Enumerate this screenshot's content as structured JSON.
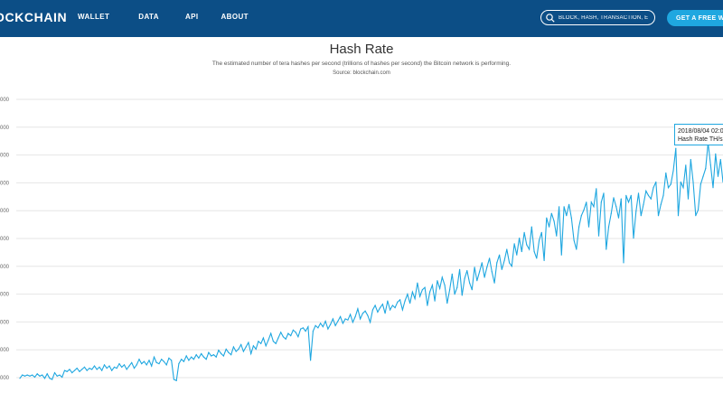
{
  "header": {
    "logo": "OCKCHAIN",
    "nav": [
      "WALLET",
      "DATA",
      "API",
      "ABOUT"
    ],
    "search_placeholder": "BLOCK, HASH, TRANSACTION, ETC...",
    "cta_label": "GET A FREE WALL"
  },
  "page": {
    "title": "Hash Rate",
    "subtitle": "The estimated number of tera hashes per second (trillions of hashes per second) the Bitcoin network is performing.",
    "source": "Source: blockchain.com"
  },
  "tooltip": {
    "date": "2018/08/04 02:0",
    "label": "Hash Rate TH/s:"
  },
  "colors": {
    "header_bg": "#0c4e86",
    "cta_bg": "#1fa7e0",
    "line": "#1fa7e0",
    "grid": "#e6e6e6"
  },
  "chart_data": {
    "type": "line",
    "title": "Hash Rate",
    "ylabel": "",
    "ytick_labels": [
      "000",
      "000",
      "000",
      "000",
      "000",
      "000",
      "000",
      "000",
      "000",
      "000",
      "000"
    ],
    "series": [
      {
        "values": [
          5,
          8,
          7,
          8,
          7,
          8,
          6,
          9,
          7,
          8,
          5,
          9,
          5,
          4,
          10,
          7,
          8,
          6,
          12,
          11,
          13,
          10,
          12,
          14,
          11,
          13,
          15,
          12,
          14,
          13,
          16,
          13,
          15,
          12,
          17,
          14,
          16,
          12,
          15,
          14,
          18,
          15,
          17,
          13,
          16,
          19,
          14,
          17,
          22,
          18,
          20,
          17,
          21,
          16,
          24,
          19,
          18,
          22,
          20,
          17,
          23,
          21,
          4,
          3,
          18,
          22,
          20,
          25,
          21,
          24,
          22,
          26,
          23,
          27,
          24,
          22,
          28,
          25,
          26,
          24,
          30,
          27,
          25,
          31,
          28,
          26,
          33,
          29,
          31,
          35,
          29,
          33,
          37,
          27,
          34,
          31,
          38,
          36,
          41,
          34,
          39,
          45,
          38,
          36,
          41,
          46,
          42,
          40,
          45,
          43,
          48,
          46,
          42,
          49,
          50,
          47,
          51,
          21,
          47,
          52,
          50,
          54,
          51,
          56,
          49,
          53,
          58,
          52,
          56,
          60,
          54,
          58,
          57,
          62,
          55,
          60,
          67,
          58,
          63,
          65,
          61,
          55,
          66,
          70,
          64,
          68,
          71,
          63,
          74,
          66,
          70,
          68,
          73,
          75,
          66,
          74,
          80,
          72,
          82,
          76,
          90,
          78,
          84,
          86,
          70,
          82,
          88,
          74,
          92,
          85,
          95,
          88,
          72,
          84,
          98,
          80,
          86,
          102,
          79,
          94,
          101,
          90,
          84,
          104,
          92,
          100,
          108,
          95,
          104,
          112,
          100,
          90,
          108,
          115,
          102,
          110,
          120,
          108,
          105,
          125,
          115,
          130,
          118,
          135,
          124,
          120,
          140,
          118,
          112,
          128,
          135,
          110,
          148,
          140,
          152,
          145,
          132,
          158,
          115,
          158,
          150,
          160,
          148,
          128,
          120,
          140,
          150,
          155,
          162,
          140,
          162,
          158,
          174,
          132,
          162,
          170,
          120,
          140,
          152,
          166,
          158,
          148,
          165,
          108,
          168,
          162,
          168,
          130,
          154,
          170,
          150,
          160,
          172,
          168,
          165,
          175,
          180,
          150,
          160,
          168,
          188,
          175,
          178,
          190,
          210,
          150,
          180,
          175,
          195,
          165,
          200,
          180,
          150,
          155,
          178,
          185,
          192,
          215,
          195,
          175,
          205,
          185,
          200,
          180
        ]
      }
    ],
    "x_start": "",
    "grid": true
  }
}
